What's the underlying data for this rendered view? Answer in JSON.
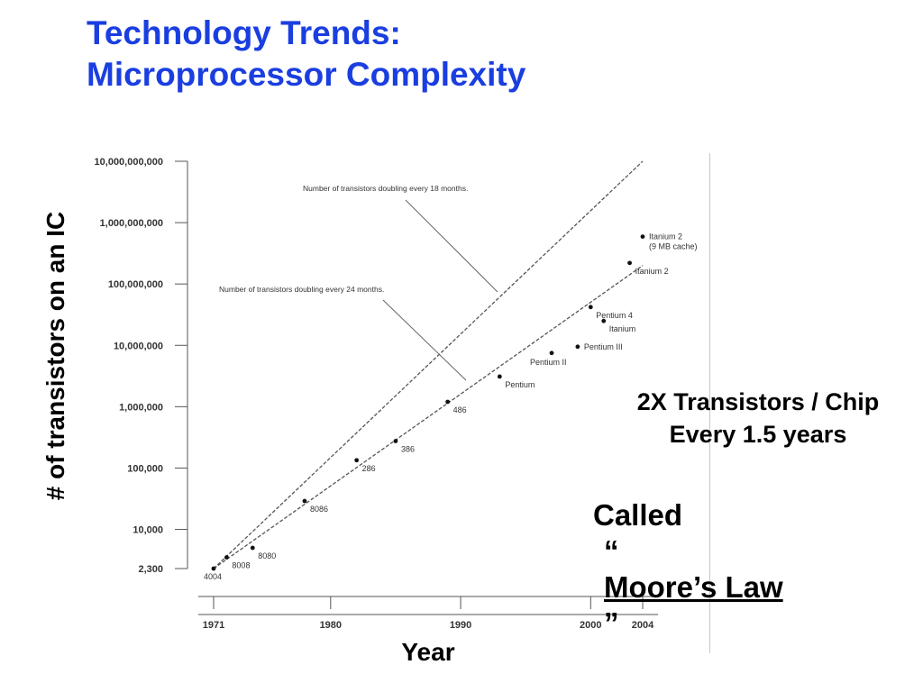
{
  "slide": {
    "title_line1": "Technology Trends:",
    "title_line2": "Microprocessor Complexity",
    "ylabel": "# of transistors on an IC",
    "xlabel": "Year",
    "note_line1": "2X Transistors / Chip",
    "note_line2": "Every 1.5 years",
    "called": "Called",
    "law_open_quote": "“",
    "law_name": "Moore’s Law",
    "law_close_quote": "”",
    "title_color": "#1a3ee0"
  },
  "chart_data": {
    "type": "scatter",
    "title": "",
    "xlabel": "Year",
    "ylabel": "# of transistors on an IC",
    "y_scale": "log",
    "xlim": [
      1971,
      2004
    ],
    "ylim": [
      2300,
      10000000000
    ],
    "x_ticks": [
      1971,
      1980,
      1990,
      2000,
      2004
    ],
    "y_ticks": [
      {
        "value": 2300,
        "label": "2,300"
      },
      {
        "value": 10000,
        "label": "10,000"
      },
      {
        "value": 100000,
        "label": "100,000"
      },
      {
        "value": 1000000,
        "label": "1,000,000"
      },
      {
        "value": 10000000,
        "label": "10,000,000"
      },
      {
        "value": 100000000,
        "label": "100,000,000"
      },
      {
        "value": 1000000000,
        "label": "1,000,000,000"
      },
      {
        "value": 10000000000,
        "label": "10,000,000,000"
      }
    ],
    "grid": false,
    "points": [
      {
        "label": "4004",
        "x": 1971,
        "y": 2300,
        "label_pos": "below-left"
      },
      {
        "label": "8008",
        "x": 1972,
        "y": 3500,
        "label_pos": "below-right"
      },
      {
        "label": "8080",
        "x": 1974,
        "y": 5000,
        "label_pos": "below-right"
      },
      {
        "label": "8086",
        "x": 1978,
        "y": 29000,
        "label_pos": "below-right"
      },
      {
        "label": "286",
        "x": 1982,
        "y": 134000,
        "label_pos": "below-right"
      },
      {
        "label": "386",
        "x": 1985,
        "y": 275000,
        "label_pos": "below-right"
      },
      {
        "label": "486",
        "x": 1989,
        "y": 1200000,
        "label_pos": "below-right"
      },
      {
        "label": "Pentium",
        "x": 1993,
        "y": 3100000,
        "label_pos": "below-right"
      },
      {
        "label": "Pentium II",
        "x": 1997,
        "y": 7500000,
        "label_pos": "below-left"
      },
      {
        "label": "Pentium III",
        "x": 1999,
        "y": 9500000,
        "label_pos": "right"
      },
      {
        "label": "Pentium 4",
        "x": 2000,
        "y": 42000000,
        "label_pos": "below-right"
      },
      {
        "label": "Itanium",
        "x": 2001,
        "y": 25000000,
        "label_pos": "below-right"
      },
      {
        "label": "Itanium 2",
        "x": 2003,
        "y": 220000000,
        "label_pos": "below-right"
      },
      {
        "label": "Itanium 2\n(9 MB cache)",
        "x": 2004,
        "y": 592000000,
        "label_pos": "right"
      }
    ],
    "trend_lines": [
      {
        "name": "Number of transistors doubling every 18 months.",
        "x": [
          1971,
          2004
        ],
        "y": [
          2300,
          10000000000
        ]
      },
      {
        "name": "Number of transistors doubling every 24 months.",
        "x": [
          1971,
          2004
        ],
        "y": [
          2300,
          200000000
        ]
      }
    ]
  }
}
